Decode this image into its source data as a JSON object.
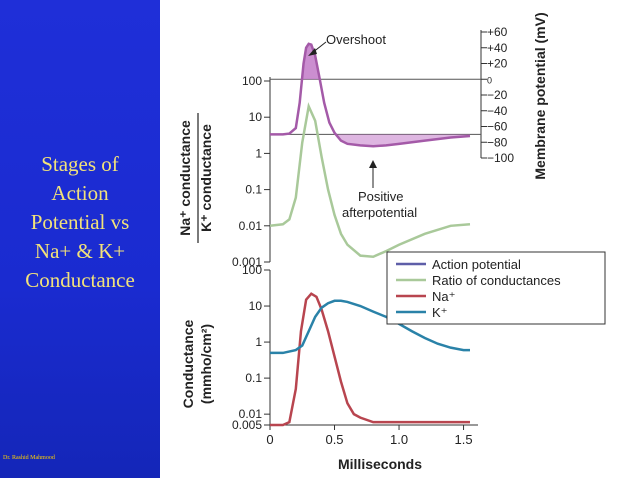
{
  "slide": {
    "title_lines": [
      "Stages of",
      "Action",
      "Potential vs",
      "Na+ & K+",
      "Conductance"
    ],
    "author": "Dr. Rashid Mahmood",
    "colors": {
      "panel": "#1f2fd8",
      "title_text": "#f2e27a",
      "author_text": "#ffd000"
    }
  },
  "chart_data": [
    {
      "type": "line",
      "panel": "top",
      "ylabel_left_1": "Na⁺ conductance",
      "ylabel_left_2": "K⁺ conductance",
      "ylabel_right": "Membrane potential (mV)",
      "y_scale": "log",
      "ylim": [
        0.001,
        100
      ],
      "y_ticks": [
        "0.001",
        "0.01",
        "0.1",
        "1",
        "10",
        "100"
      ],
      "right_ylim": [
        -100,
        60
      ],
      "right_ticks": [
        "+60",
        "+40",
        "+20",
        "0",
        "−20",
        "−40",
        "−60",
        "−80",
        "−100"
      ],
      "annotations": [
        {
          "text": "Overshoot"
        },
        {
          "text_lines": [
            "Positive",
            "afterpotential"
          ]
        }
      ],
      "series": [
        {
          "name": "Action potential",
          "color": "#5e5ea8",
          "axis": "right",
          "x": [
            0,
            0.1,
            0.15,
            0.2,
            0.23,
            0.26,
            0.28,
            0.3,
            0.32,
            0.35,
            0.38,
            0.42,
            0.46,
            0.5,
            0.55,
            0.6,
            0.7,
            0.8,
            0.9,
            1.0,
            1.2,
            1.4,
            1.55
          ],
          "y": [
            -70,
            -70,
            -69,
            -62,
            -30,
            20,
            40,
            45,
            44,
            30,
            5,
            -30,
            -55,
            -68,
            -78,
            -82,
            -84,
            -85,
            -84,
            -82,
            -78,
            -74,
            -72
          ]
        },
        {
          "name": "Ratio of conductances",
          "color": "#a9c99a",
          "axis": "left",
          "x": [
            0,
            0.1,
            0.15,
            0.2,
            0.25,
            0.3,
            0.35,
            0.4,
            0.45,
            0.5,
            0.55,
            0.6,
            0.7,
            0.8,
            0.9,
            1.0,
            1.2,
            1.4,
            1.55
          ],
          "y": [
            0.01,
            0.011,
            0.015,
            0.06,
            2,
            20,
            8,
            0.8,
            0.1,
            0.02,
            0.006,
            0.003,
            0.0015,
            0.0014,
            0.002,
            0.003,
            0.006,
            0.01,
            0.011
          ]
        }
      ]
    },
    {
      "type": "line",
      "panel": "bottom",
      "ylabel_1": "Conductance",
      "ylabel_2": "(mmho/cm²)",
      "xlabel": "Milliseconds",
      "y_scale": "log",
      "ylim": [
        0.005,
        100
      ],
      "y_ticks": [
        "0.005",
        "0.01",
        "0.1",
        "1",
        "10",
        "100"
      ],
      "x_ticks": [
        "0",
        "0.5",
        "1.0",
        "1.5"
      ],
      "xlim": [
        0,
        1.55
      ],
      "series": [
        {
          "name": "Na⁺",
          "color": "#b8454f",
          "x": [
            0,
            0.1,
            0.15,
            0.2,
            0.24,
            0.28,
            0.32,
            0.36,
            0.4,
            0.45,
            0.5,
            0.55,
            0.6,
            0.65,
            0.7,
            0.8,
            1.0,
            1.2,
            1.4,
            1.55
          ],
          "y": [
            0.005,
            0.005,
            0.006,
            0.05,
            2,
            15,
            22,
            18,
            8,
            2,
            0.4,
            0.08,
            0.02,
            0.01,
            0.008,
            0.006,
            0.006,
            0.006,
            0.006,
            0.006
          ]
        },
        {
          "name": "K⁺",
          "color": "#2a82a8",
          "x": [
            0,
            0.1,
            0.2,
            0.25,
            0.3,
            0.35,
            0.4,
            0.45,
            0.5,
            0.55,
            0.6,
            0.7,
            0.8,
            0.9,
            1.0,
            1.1,
            1.2,
            1.3,
            1.4,
            1.5,
            1.55
          ],
          "y": [
            0.5,
            0.5,
            0.6,
            0.8,
            2,
            5,
            9,
            12,
            14,
            14,
            13,
            10,
            7,
            5,
            3.2,
            2,
            1.3,
            0.9,
            0.7,
            0.6,
            0.6
          ]
        }
      ]
    }
  ],
  "legend": {
    "placement": "right",
    "items": [
      {
        "label": "Action potential",
        "color": "#5e5ea8"
      },
      {
        "label": "Ratio of conductances",
        "color": "#a9c99a"
      },
      {
        "label": "Na⁺",
        "color": "#b8454f"
      },
      {
        "label": "K⁺",
        "color": "#2a82a8"
      }
    ]
  }
}
